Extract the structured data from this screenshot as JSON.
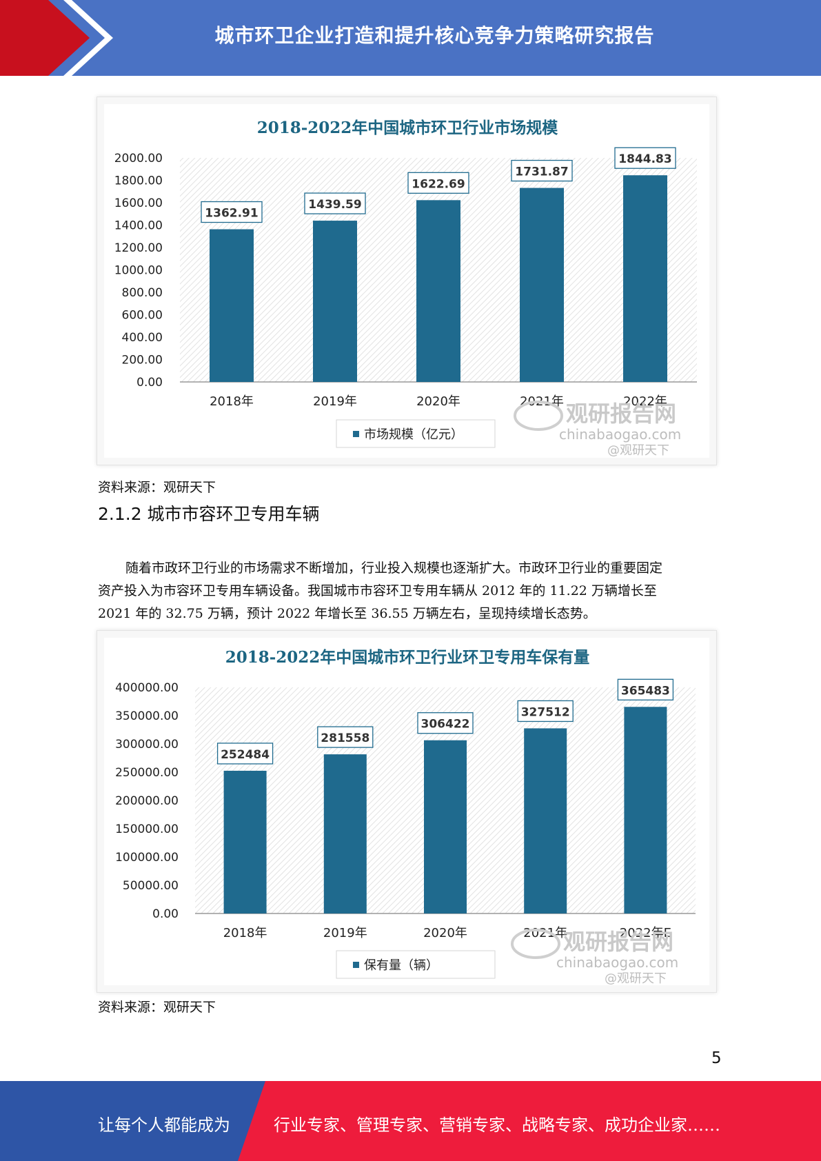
{
  "header": {
    "title": "城市环卫企业打造和提升核心竞争力策略研究报告"
  },
  "colors": {
    "header_blue": "#4a72c4",
    "header_red": "#c8101e",
    "bar": "#1f6a8e",
    "footer_red": "#ee1c3c",
    "footer_blue": "#2e55a6",
    "title_teal": "#1c6582"
  },
  "charts": [
    {
      "chart_data": {
        "type": "bar",
        "title": "2018-2022年中国城市环卫行业市场规模",
        "categories": [
          "2018年",
          "2019年",
          "2020年",
          "2021年",
          "2022年"
        ],
        "series": [
          {
            "name": "市场规模（亿元）",
            "values": [
              1362.91,
              1439.59,
              1622.69,
              1731.87,
              1844.83
            ]
          }
        ],
        "value_labels": [
          "1362.91",
          "1439.59",
          "1622.69",
          "1731.87",
          "1844.83"
        ],
        "ylim": [
          0,
          2000
        ],
        "yticks": [
          "0.00",
          "200.00",
          "400.00",
          "600.00",
          "800.00",
          "1000.00",
          "1200.00",
          "1400.00",
          "1600.00",
          "1800.00",
          "2000.00"
        ],
        "legend": "bottom",
        "grid": false
      }
    },
    {
      "chart_data": {
        "type": "bar",
        "title": "2018-2022年中国城市环卫行业环卫专用车保有量",
        "categories": [
          "2018年",
          "2019年",
          "2020年",
          "2021年",
          "2022年E"
        ],
        "series": [
          {
            "name": "保有量（辆）",
            "values": [
              252484,
              281558,
              306422,
              327512,
              365483
            ]
          }
        ],
        "value_labels": [
          "252484",
          "281558",
          "306422",
          "327512",
          "365483"
        ],
        "ylim": [
          0,
          400000
        ],
        "yticks": [
          "0.00",
          "50000.00",
          "100000.00",
          "150000.00",
          "200000.00",
          "250000.00",
          "300000.00",
          "350000.00",
          "400000.00"
        ],
        "legend": "bottom",
        "grid": false
      }
    }
  ],
  "watermark": {
    "logo": "观研报告网",
    "url": "chinabaogao.com",
    "handle": "@观研天下"
  },
  "sources": [
    "资料来源：观研天下",
    "资料来源：观研天下"
  ],
  "section": {
    "title": "2.1.2 城市市容环卫专用车辆"
  },
  "paragraph": {
    "lines": [
      "随着市政环卫行业的市场需求不断增加，行业投入规模也逐渐扩大。市政环卫行业的重要固定",
      "资产投入为市容环卫专用车辆设备。我国城市市容环卫专用车辆从 2012 年的 11.22 万辆增长至",
      "2021 年的 32.75 万辆，预计 2022 年增长至 36.55 万辆左右，呈现持续增长态势。"
    ]
  },
  "page_number": "5",
  "footer": {
    "left": "让每个人都能成为",
    "right": "行业专家、管理专家、营销专家、战略专家、成功企业家……"
  }
}
